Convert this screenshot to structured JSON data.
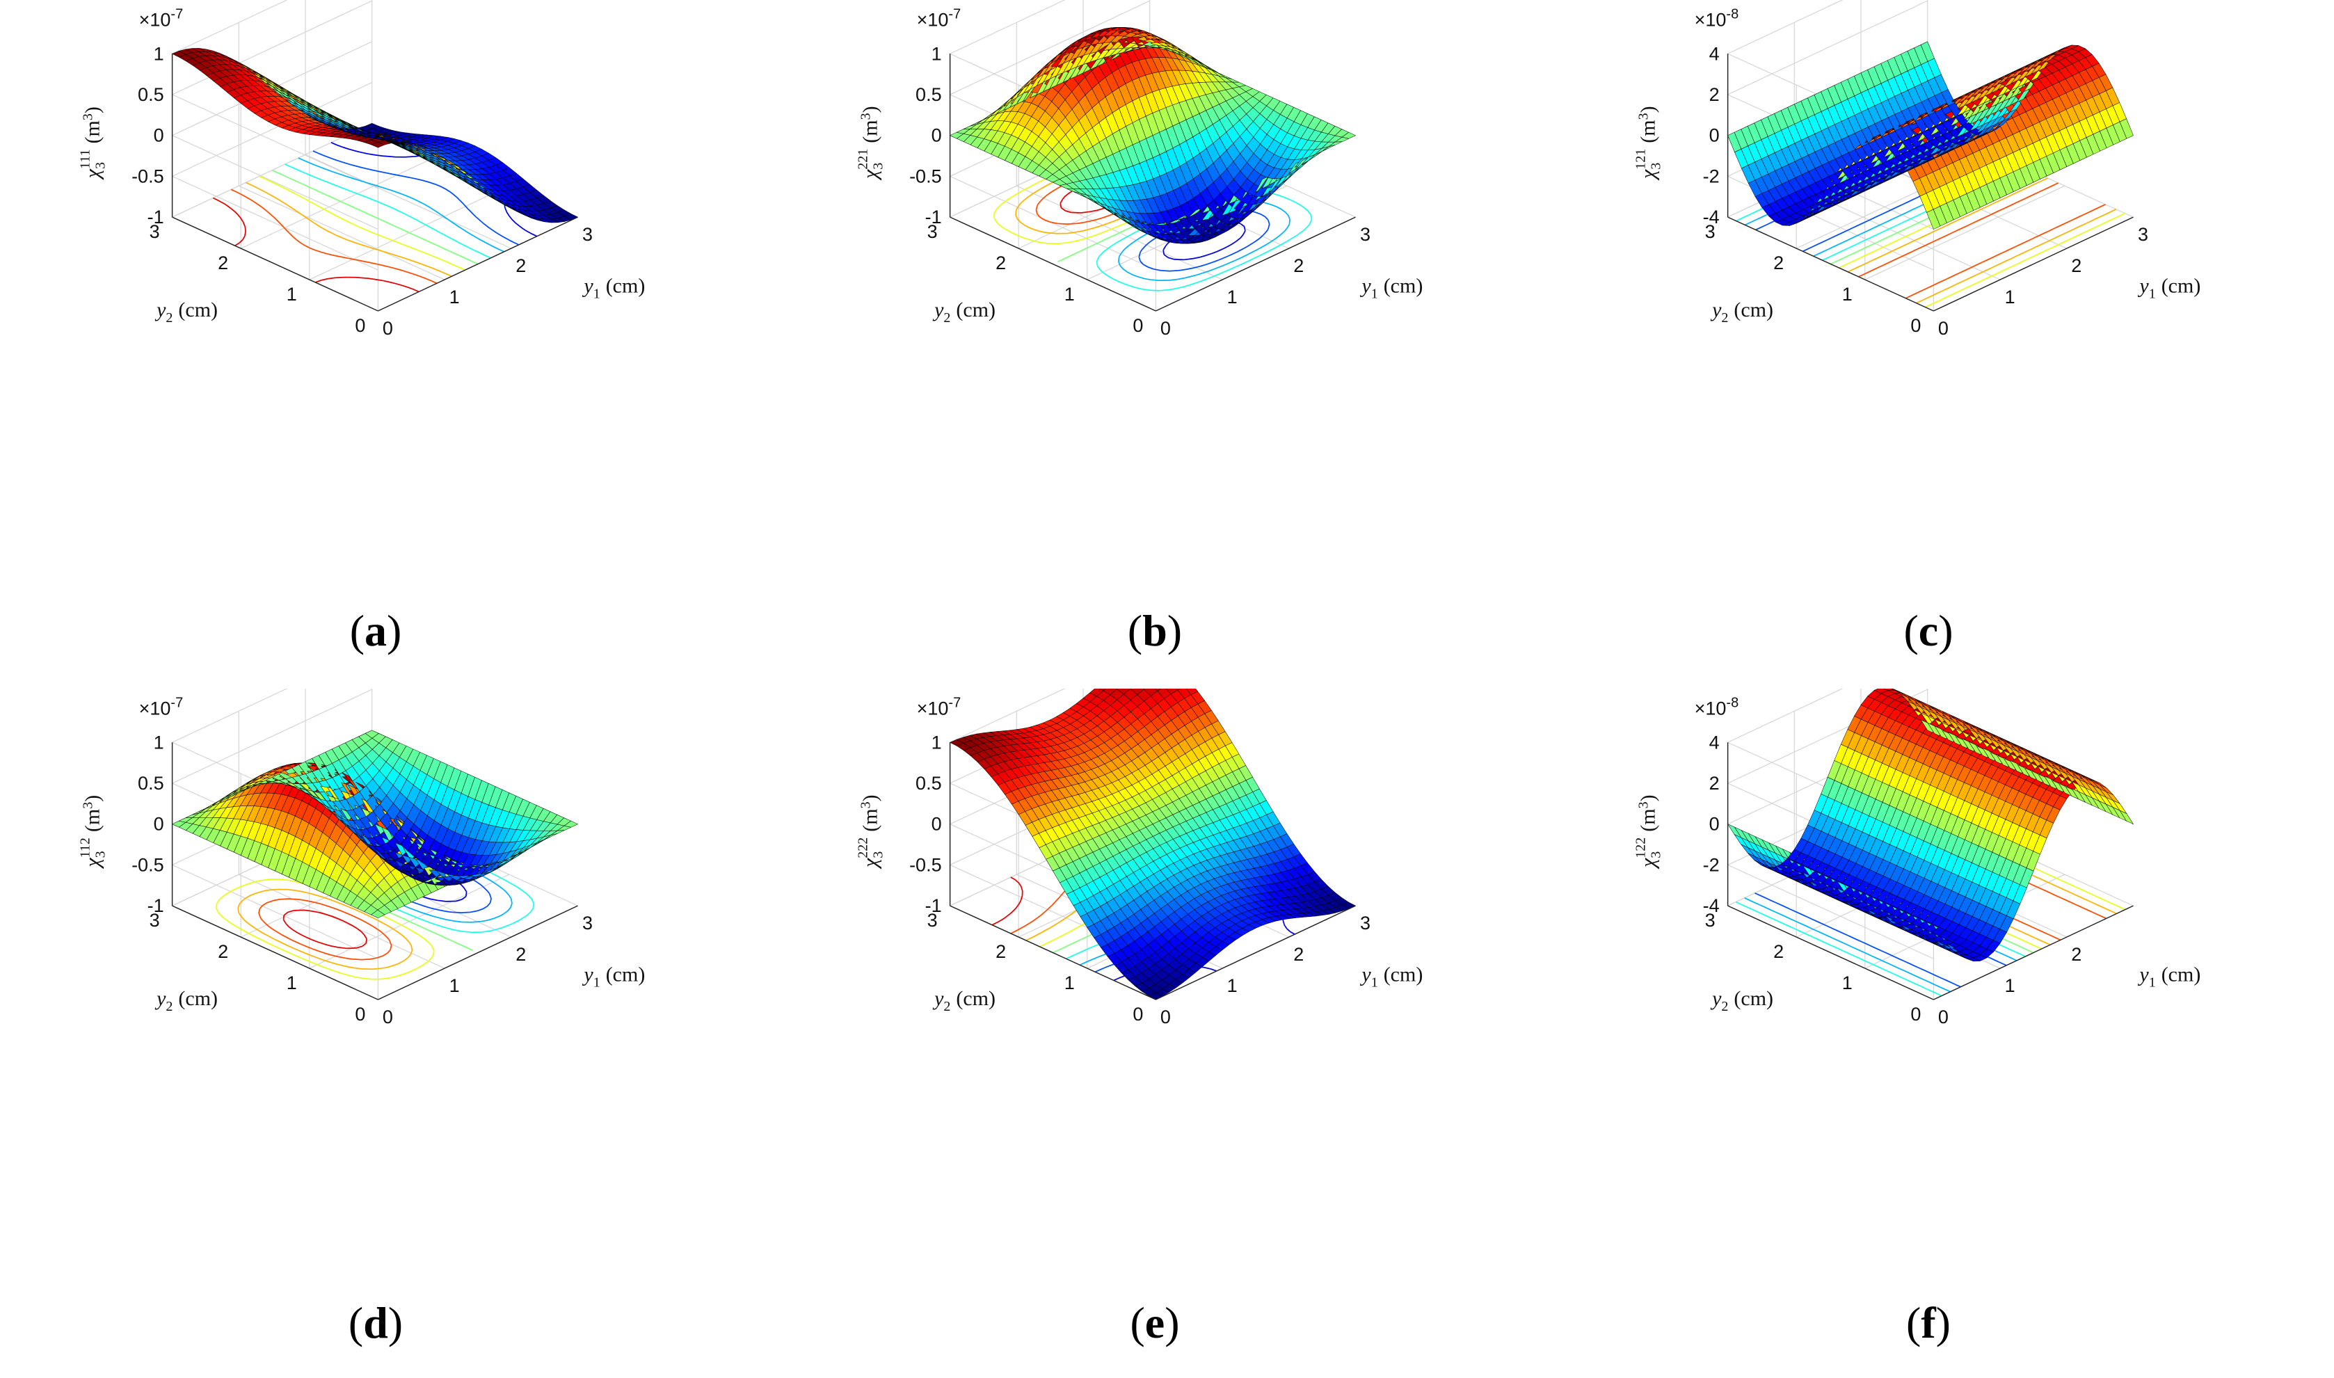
{
  "chart_data": [
    {
      "id": "a",
      "type": "surface",
      "caption_letter": "a",
      "zlabel": {
        "symbol": "χ",
        "sub": "3",
        "sup": "111",
        "unit": "(m",
        "unit_sup": "3",
        "unit_close": ")"
      },
      "exponent_label": "×10",
      "exponent_sup": "-7",
      "xlabel": {
        "var": "y",
        "sub": "1",
        "unit": "(cm)"
      },
      "ylabel": {
        "var": "y",
        "sub": "2",
        "unit": "(cm)"
      },
      "zlim": [
        -1,
        1
      ],
      "z_ticks": [
        "1",
        "0.5",
        "0",
        "-0.5",
        "-1"
      ],
      "x_ticks": [
        "0",
        "1",
        "2",
        "3"
      ],
      "y_ticks": [
        "0",
        "1",
        "2",
        "3"
      ],
      "amplitude": 1.0,
      "formula": "z = cos(pi*y1/3) * (0.85 + 0.15*cos(2*pi*y2/3))",
      "mode": "a"
    },
    {
      "id": "b",
      "type": "surface",
      "caption_letter": "b",
      "zlabel": {
        "symbol": "χ",
        "sub": "3",
        "sup": "221",
        "unit": "(m",
        "unit_sup": "3",
        "unit_close": ")"
      },
      "exponent_label": "×10",
      "exponent_sup": "-7",
      "xlabel": {
        "var": "y",
        "sub": "1",
        "unit": "(cm)"
      },
      "ylabel": {
        "var": "y",
        "sub": "2",
        "unit": "(cm)"
      },
      "zlim": [
        -1,
        1
      ],
      "z_ticks": [
        "1",
        "0.5",
        "0",
        "-0.5",
        "-1"
      ],
      "x_ticks": [
        "0",
        "1",
        "2",
        "3"
      ],
      "y_ticks": [
        "0",
        "1",
        "2",
        "3"
      ],
      "amplitude": 0.95,
      "formula": "z = -sin(pi*y1/3) * sin(2*pi*y2/3)",
      "mode": "b"
    },
    {
      "id": "c",
      "type": "surface",
      "caption_letter": "c",
      "zlabel": {
        "symbol": "χ",
        "sub": "3",
        "sup": "121",
        "unit": "(m",
        "unit_sup": "3",
        "unit_close": ")"
      },
      "exponent_label": "×10",
      "exponent_sup": "-8",
      "xlabel": {
        "var": "y",
        "sub": "1",
        "unit": "(cm)"
      },
      "ylabel": {
        "var": "y",
        "sub": "2",
        "unit": "(cm)"
      },
      "zlim": [
        -4,
        4
      ],
      "z_ticks": [
        "4",
        "2",
        "0",
        "-2",
        "-4"
      ],
      "x_ticks": [
        "0",
        "1",
        "2",
        "3"
      ],
      "y_ticks": [
        "0",
        "1",
        "2",
        "3"
      ],
      "amplitude": 3.2,
      "formula": "z = 3.2 * sin(2*pi*y2/3) (varies along y2 only)",
      "mode": "c"
    },
    {
      "id": "d",
      "type": "surface",
      "caption_letter": "d",
      "zlabel": {
        "symbol": "χ",
        "sub": "3",
        "sup": "112",
        "unit": "(m",
        "unit_sup": "3",
        "unit_close": ")"
      },
      "exponent_label": "×10",
      "exponent_sup": "-7",
      "xlabel": {
        "var": "y",
        "sub": "1",
        "unit": "(cm)"
      },
      "ylabel": {
        "var": "y",
        "sub": "2",
        "unit": "(cm)"
      },
      "zlim": [
        -1,
        1
      ],
      "z_ticks": [
        "1",
        "0.5",
        "0",
        "-0.5",
        "-1"
      ],
      "x_ticks": [
        "0",
        "1",
        "2",
        "3"
      ],
      "y_ticks": [
        "0",
        "1",
        "2",
        "3"
      ],
      "amplitude": 0.95,
      "formula": "z = sin(2*pi*y1/3) * sin(pi*y2/3)",
      "mode": "d"
    },
    {
      "id": "e",
      "type": "surface",
      "caption_letter": "e",
      "zlabel": {
        "symbol": "χ",
        "sub": "3",
        "sup": "222",
        "unit": "(m",
        "unit_sup": "3",
        "unit_close": ")"
      },
      "exponent_label": "×10",
      "exponent_sup": "-7",
      "xlabel": {
        "var": "y",
        "sub": "1",
        "unit": "(cm)"
      },
      "ylabel": {
        "var": "y",
        "sub": "2",
        "unit": "(cm)"
      },
      "zlim": [
        -1,
        1
      ],
      "z_ticks": [
        "1",
        "0.5",
        "0",
        "-0.5",
        "-1"
      ],
      "x_ticks": [
        "0",
        "1",
        "2",
        "3"
      ],
      "y_ticks": [
        "0",
        "1",
        "2",
        "3"
      ],
      "amplitude": 1.0,
      "formula": "z = -cos(pi*y2/3) * (0.85 + 0.15*cos(2*pi*y1/3))",
      "mode": "e"
    },
    {
      "id": "f",
      "type": "surface",
      "caption_letter": "f",
      "zlabel": {
        "symbol": "χ",
        "sub": "3",
        "sup": "122",
        "unit": "(m",
        "unit_sup": "3",
        "unit_close": ")"
      },
      "exponent_label": "×10",
      "exponent_sup": "-8",
      "xlabel": {
        "var": "y",
        "sub": "1",
        "unit": "(cm)"
      },
      "ylabel": {
        "var": "y",
        "sub": "2",
        "unit": "(cm)"
      },
      "zlim": [
        -4,
        4
      ],
      "z_ticks": [
        "4",
        "2",
        "0",
        "-2",
        "-4"
      ],
      "x_ticks": [
        "0",
        "1",
        "2"
      ],
      "y_ticks": [
        "0",
        "1",
        "2",
        "3"
      ],
      "amplitude": 3.2,
      "formula": "z = -3.2 * sin(2*pi*y1/3) (varies along y1 only)",
      "mode": "f"
    }
  ]
}
